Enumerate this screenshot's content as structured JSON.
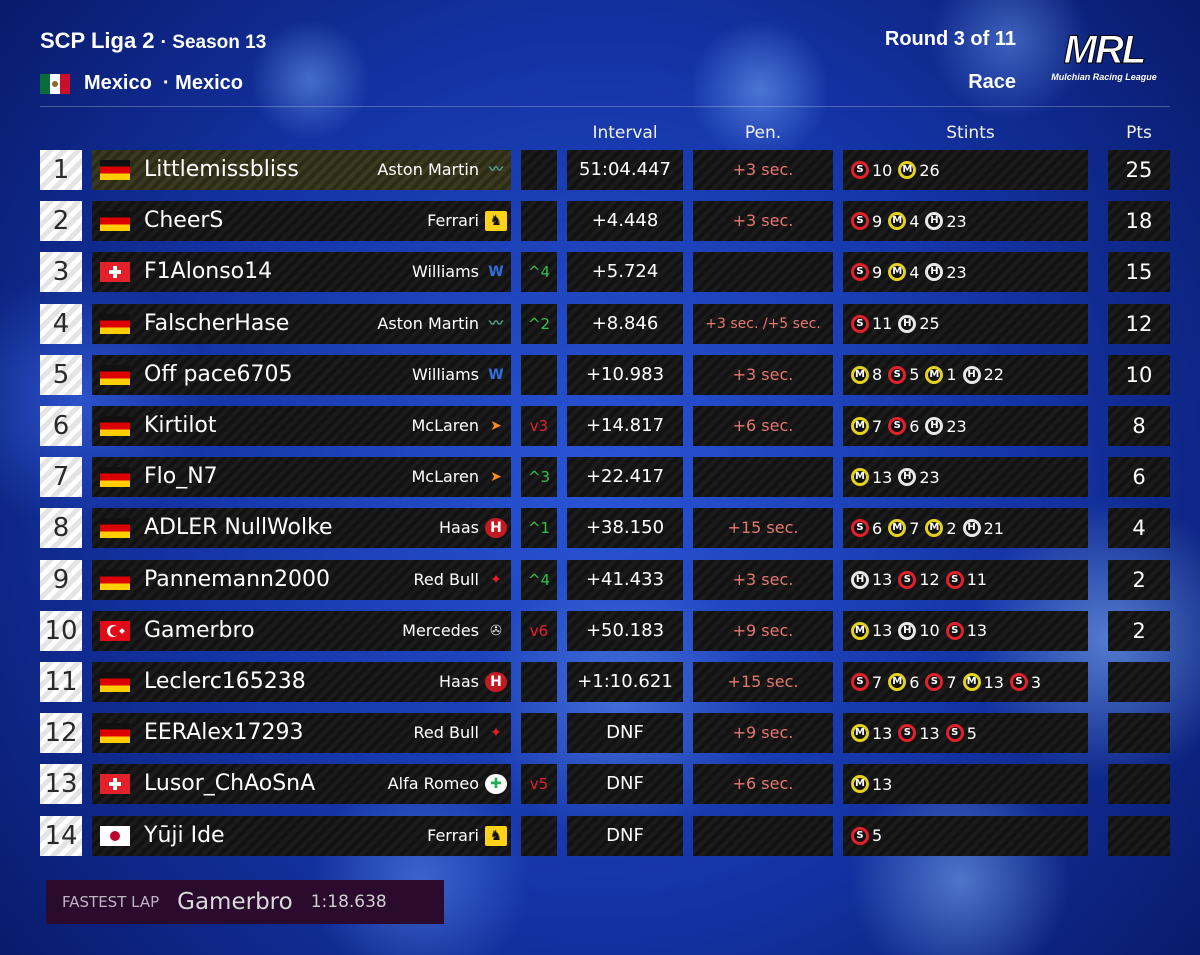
{
  "header": {
    "series": "SCP Liga 2",
    "season": "Season 13",
    "flag_icon": "mexico-flag-icon",
    "country": "Mexico",
    "circuit": "Mexico",
    "round": "Round 3 of 11",
    "session": "Race"
  },
  "logo": {
    "letters": "MRL",
    "caption": "Mulchian Racing League"
  },
  "columns": {
    "interval": "Interval",
    "penalty": "Pen.",
    "stints": "Stints",
    "points": "Pts"
  },
  "rows": [
    {
      "pos": "1",
      "flag": "germany-flag-icon",
      "driver": "Littlemissbliss",
      "team": "Aston Martin",
      "team_icon": "aston-martin-icon",
      "change": "",
      "change_dir": "",
      "interval": "51:04.447",
      "penalty": "+3 sec.",
      "stints": [
        {
          "c": "S",
          "l": "10"
        },
        {
          "c": "M",
          "l": "26"
        }
      ],
      "points": "25"
    },
    {
      "pos": "2",
      "flag": "germany-flag-icon",
      "driver": "CheerS",
      "team": "Ferrari",
      "team_icon": "ferrari-icon",
      "change": "",
      "change_dir": "",
      "interval": "+4.448",
      "penalty": "+3 sec.",
      "stints": [
        {
          "c": "S",
          "l": "9"
        },
        {
          "c": "M",
          "l": "4"
        },
        {
          "c": "H",
          "l": "23"
        }
      ],
      "points": "18"
    },
    {
      "pos": "3",
      "flag": "switzerland-flag-icon",
      "driver": "F1Alonso14",
      "team": "Williams",
      "team_icon": "williams-icon",
      "change": "4",
      "change_dir": "up",
      "interval": "+5.724",
      "penalty": "",
      "stints": [
        {
          "c": "S",
          "l": "9"
        },
        {
          "c": "M",
          "l": "4"
        },
        {
          "c": "H",
          "l": "23"
        }
      ],
      "points": "15"
    },
    {
      "pos": "4",
      "flag": "germany-flag-icon",
      "driver": "FalscherHase",
      "team": "Aston Martin",
      "team_icon": "aston-martin-icon",
      "change": "2",
      "change_dir": "up",
      "interval": "+8.846",
      "penalty": "+3 sec. /+5 sec.",
      "stints": [
        {
          "c": "S",
          "l": "11"
        },
        {
          "c": "H",
          "l": "25"
        }
      ],
      "points": "12"
    },
    {
      "pos": "5",
      "flag": "germany-flag-icon",
      "driver": "Off pace6705",
      "team": "Williams",
      "team_icon": "williams-icon",
      "change": "",
      "change_dir": "",
      "interval": "+10.983",
      "penalty": "+3 sec.",
      "stints": [
        {
          "c": "M",
          "l": "8"
        },
        {
          "c": "S",
          "l": "5"
        },
        {
          "c": "M",
          "l": "1"
        },
        {
          "c": "H",
          "l": "22"
        }
      ],
      "points": "10"
    },
    {
      "pos": "6",
      "flag": "germany-flag-icon",
      "driver": "Kirtilot",
      "team": "McLaren",
      "team_icon": "mclaren-icon",
      "change": "3",
      "change_dir": "down",
      "interval": "+14.817",
      "penalty": "+6 sec.",
      "stints": [
        {
          "c": "M",
          "l": "7"
        },
        {
          "c": "S",
          "l": "6"
        },
        {
          "c": "H",
          "l": "23"
        }
      ],
      "points": "8"
    },
    {
      "pos": "7",
      "flag": "germany-flag-icon",
      "driver": "Flo_N7",
      "team": "McLaren",
      "team_icon": "mclaren-icon",
      "change": "3",
      "change_dir": "up",
      "interval": "+22.417",
      "penalty": "",
      "stints": [
        {
          "c": "M",
          "l": "13"
        },
        {
          "c": "H",
          "l": "23"
        }
      ],
      "points": "6"
    },
    {
      "pos": "8",
      "flag": "germany-flag-icon",
      "driver": "ADLER NullWolke",
      "team": "Haas",
      "team_icon": "haas-icon",
      "change": "1",
      "change_dir": "up",
      "interval": "+38.150",
      "penalty": "+15 sec.",
      "stints": [
        {
          "c": "S",
          "l": "6"
        },
        {
          "c": "M",
          "l": "7"
        },
        {
          "c": "M",
          "l": "2"
        },
        {
          "c": "H",
          "l": "21"
        }
      ],
      "points": "4"
    },
    {
      "pos": "9",
      "flag": "germany-flag-icon",
      "driver": "Pannemann2000",
      "team": "Red Bull",
      "team_icon": "red-bull-icon",
      "change": "4",
      "change_dir": "up",
      "interval": "+41.433",
      "penalty": "+3 sec.",
      "stints": [
        {
          "c": "H",
          "l": "13"
        },
        {
          "c": "S",
          "l": "12"
        },
        {
          "c": "S",
          "l": "11"
        }
      ],
      "points": "2"
    },
    {
      "pos": "10",
      "flag": "turkey-flag-icon",
      "driver": "Gamerbro",
      "team": "Mercedes",
      "team_icon": "mercedes-icon",
      "change": "6",
      "change_dir": "down",
      "interval": "+50.183",
      "penalty": "+9 sec.",
      "stints": [
        {
          "c": "M",
          "l": "13"
        },
        {
          "c": "H",
          "l": "10"
        },
        {
          "c": "S",
          "l": "13"
        }
      ],
      "points": "2"
    },
    {
      "pos": "11",
      "flag": "germany-flag-icon",
      "driver": "Leclerc165238",
      "team": "Haas",
      "team_icon": "haas-icon",
      "change": "",
      "change_dir": "",
      "interval": "+1:10.621",
      "penalty": "+15 sec.",
      "stints": [
        {
          "c": "S",
          "l": "7"
        },
        {
          "c": "M",
          "l": "6"
        },
        {
          "c": "S",
          "l": "7"
        },
        {
          "c": "M",
          "l": "13"
        },
        {
          "c": "S",
          "l": "3"
        }
      ],
      "points": ""
    },
    {
      "pos": "12",
      "flag": "germany-flag-icon",
      "driver": "EERAlex17293",
      "team": "Red Bull",
      "team_icon": "red-bull-icon",
      "change": "",
      "change_dir": "",
      "interval": "DNF",
      "penalty": "+9 sec.",
      "stints": [
        {
          "c": "M",
          "l": "13"
        },
        {
          "c": "S",
          "l": "13"
        },
        {
          "c": "S",
          "l": "5"
        }
      ],
      "points": ""
    },
    {
      "pos": "13",
      "flag": "switzerland-flag-icon",
      "driver": "Lusor_ChAoSnA",
      "team": "Alfa Romeo",
      "team_icon": "alfa-romeo-icon",
      "change": "5",
      "change_dir": "down",
      "interval": "DNF",
      "penalty": "+6 sec.",
      "stints": [
        {
          "c": "M",
          "l": "13"
        }
      ],
      "points": ""
    },
    {
      "pos": "14",
      "flag": "japan-flag-icon",
      "driver": "Yūji Ide",
      "team": "Ferrari",
      "team_icon": "ferrari-icon",
      "change": "",
      "change_dir": "",
      "interval": "DNF",
      "penalty": "",
      "stints": [
        {
          "c": "S",
          "l": "5"
        }
      ],
      "points": ""
    }
  ],
  "fastest_lap": {
    "label": "FASTEST LAP",
    "driver": "Gamerbro",
    "time": "1:18.638"
  },
  "colors": {
    "soft": "#e2212a",
    "medium": "#e4d21f",
    "hard": "#e8e8e8",
    "gain": "#2fc34a",
    "loss": "#e2212a",
    "penalty": "#e5786f"
  }
}
